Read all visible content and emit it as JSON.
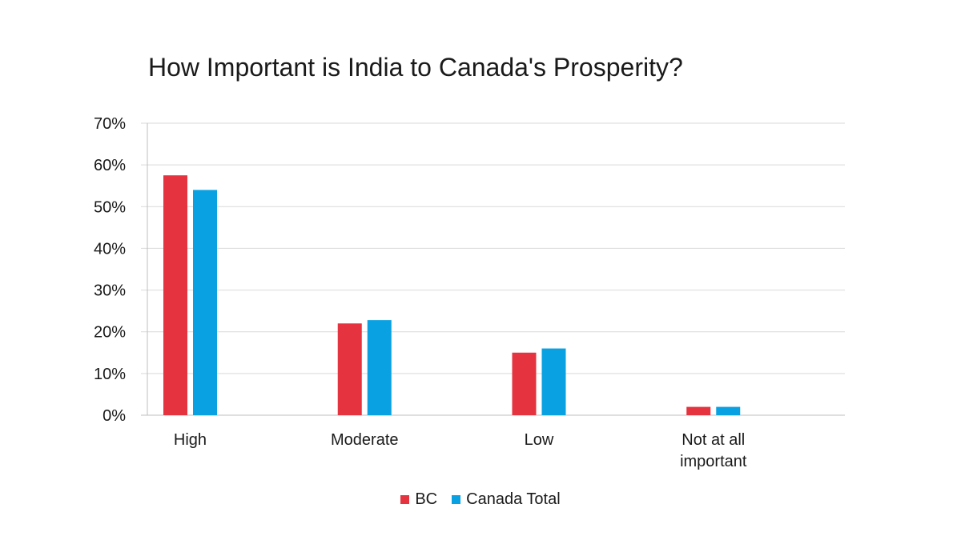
{
  "chart_data": {
    "type": "bar",
    "title": "How Important is India to Canada's Prosperity?",
    "categories": [
      "High",
      "Moderate",
      "Low",
      "Not at all important"
    ],
    "category_label_lines": [
      [
        "High"
      ],
      [
        "Moderate"
      ],
      [
        "Low"
      ],
      [
        "Not at all",
        "important"
      ]
    ],
    "series": [
      {
        "name": "BC",
        "color": "#e5333f",
        "values": [
          57.5,
          22,
          15,
          2
        ]
      },
      {
        "name": "Canada Total",
        "color": "#0aa1e2",
        "values": [
          54,
          22.8,
          16,
          2
        ]
      }
    ],
    "ylim": [
      0,
      70
    ],
    "yticks": [
      0,
      10,
      20,
      30,
      40,
      50,
      60,
      70
    ],
    "ytick_labels": [
      "0%",
      "10%",
      "20%",
      "30%",
      "40%",
      "50%",
      "60%",
      "70%"
    ],
    "xlabel": "",
    "ylabel": "",
    "grid": true,
    "legend_position": "bottom"
  }
}
